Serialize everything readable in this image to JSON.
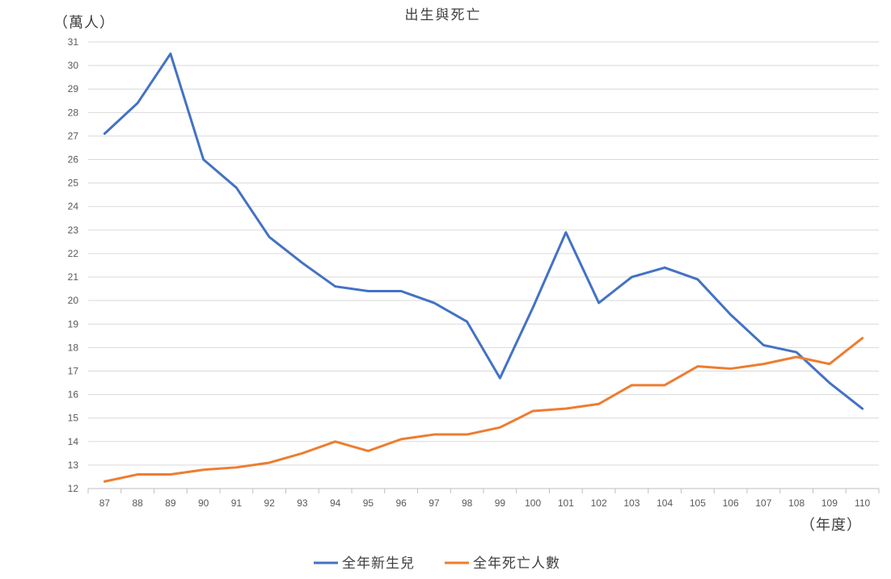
{
  "chart_data": {
    "type": "line",
    "title": "出生與死亡",
    "ylabel": "（萬人）",
    "xlabel": "（年度）",
    "ylim": [
      12,
      31
    ],
    "yticks": [
      12,
      13,
      14,
      15,
      16,
      17,
      18,
      19,
      20,
      21,
      22,
      23,
      24,
      25,
      26,
      27,
      28,
      29,
      30,
      31
    ],
    "categories": [
      "87",
      "88",
      "89",
      "90",
      "91",
      "92",
      "93",
      "94",
      "95",
      "96",
      "97",
      "98",
      "99",
      "100",
      "101",
      "102",
      "103",
      "104",
      "105",
      "106",
      "107",
      "108",
      "109",
      "110"
    ],
    "series": [
      {
        "name": "全年新生兒",
        "color": "#4472C4",
        "values": [
          27.1,
          28.4,
          30.5,
          26.0,
          24.8,
          22.7,
          21.6,
          20.6,
          20.4,
          20.4,
          19.9,
          19.1,
          16.7,
          19.7,
          22.9,
          19.9,
          21.0,
          21.4,
          20.9,
          19.4,
          18.1,
          17.8,
          16.5,
          15.4
        ]
      },
      {
        "name": "全年死亡人數",
        "color": "#ED7D31",
        "values": [
          12.3,
          12.6,
          12.6,
          12.8,
          12.9,
          13.1,
          13.5,
          14.0,
          13.6,
          14.1,
          14.3,
          14.3,
          14.6,
          15.3,
          15.4,
          15.6,
          16.4,
          16.4,
          17.2,
          17.1,
          17.3,
          17.6,
          17.3,
          18.4
        ]
      }
    ],
    "grid": true,
    "legend": "bottom"
  }
}
